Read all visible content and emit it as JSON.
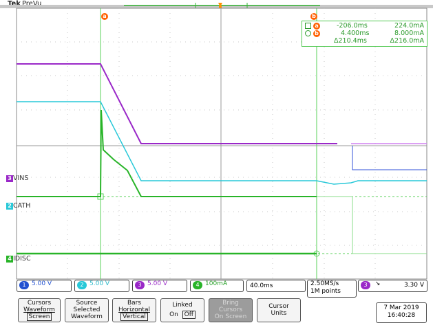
{
  "header": {
    "brand": "Tek",
    "mode": "PreVu"
  },
  "cursors": {
    "marker_a": "a",
    "marker_b": "b",
    "row_a": {
      "time": "-206.0ms",
      "value": "224.0mA"
    },
    "row_b": {
      "time": "4.400ms",
      "value": "8.000mA"
    },
    "row_delta": {
      "time": "Δ210.4ms",
      "value": "Δ216.0mA"
    }
  },
  "channels": [
    {
      "num": "3",
      "label": "VINS",
      "color": "#9a28c8"
    },
    {
      "num": "2",
      "label": "CATH",
      "color": "#28c8d8"
    },
    {
      "num": "4",
      "label": "IDISC",
      "color": "#28b428"
    }
  ],
  "status": {
    "ch1": {
      "num": "1",
      "scale": "5.00 V",
      "color": "#2050d0"
    },
    "ch2": {
      "num": "2",
      "scale": "5.00 V",
      "color": "#28c8d8"
    },
    "ch3": {
      "num": "3",
      "scale": "5.00 V",
      "color": "#9a28c8"
    },
    "ch4": {
      "num": "4",
      "scale": "100mA",
      "color": "#28b428"
    },
    "timebase": "40.0ms",
    "sample_rate": "2.50MS/s",
    "record_length": "1M points",
    "trigger_ch": "3",
    "trigger_slope": "↘",
    "trigger_level": "3.30 V"
  },
  "menu": {
    "cursors": {
      "line1": "Cursors",
      "line2": "Waveform",
      "line3": "Screen"
    },
    "source": {
      "line1": "Source",
      "line2": "Selected",
      "line3": "Waveform"
    },
    "bars": {
      "line1": "Bars",
      "line2": "Horizontal",
      "line3": "Vertical"
    },
    "linked": {
      "line1": "Linked",
      "on": "On",
      "off": "Off"
    },
    "bring": {
      "line1": "Bring",
      "line2": "Cursors",
      "line3": "On Screen"
    },
    "units": {
      "line1": "Cursor",
      "line2": "Units"
    }
  },
  "datetime": {
    "date": "7 Mar 2019",
    "time": "16:40:28"
  }
}
